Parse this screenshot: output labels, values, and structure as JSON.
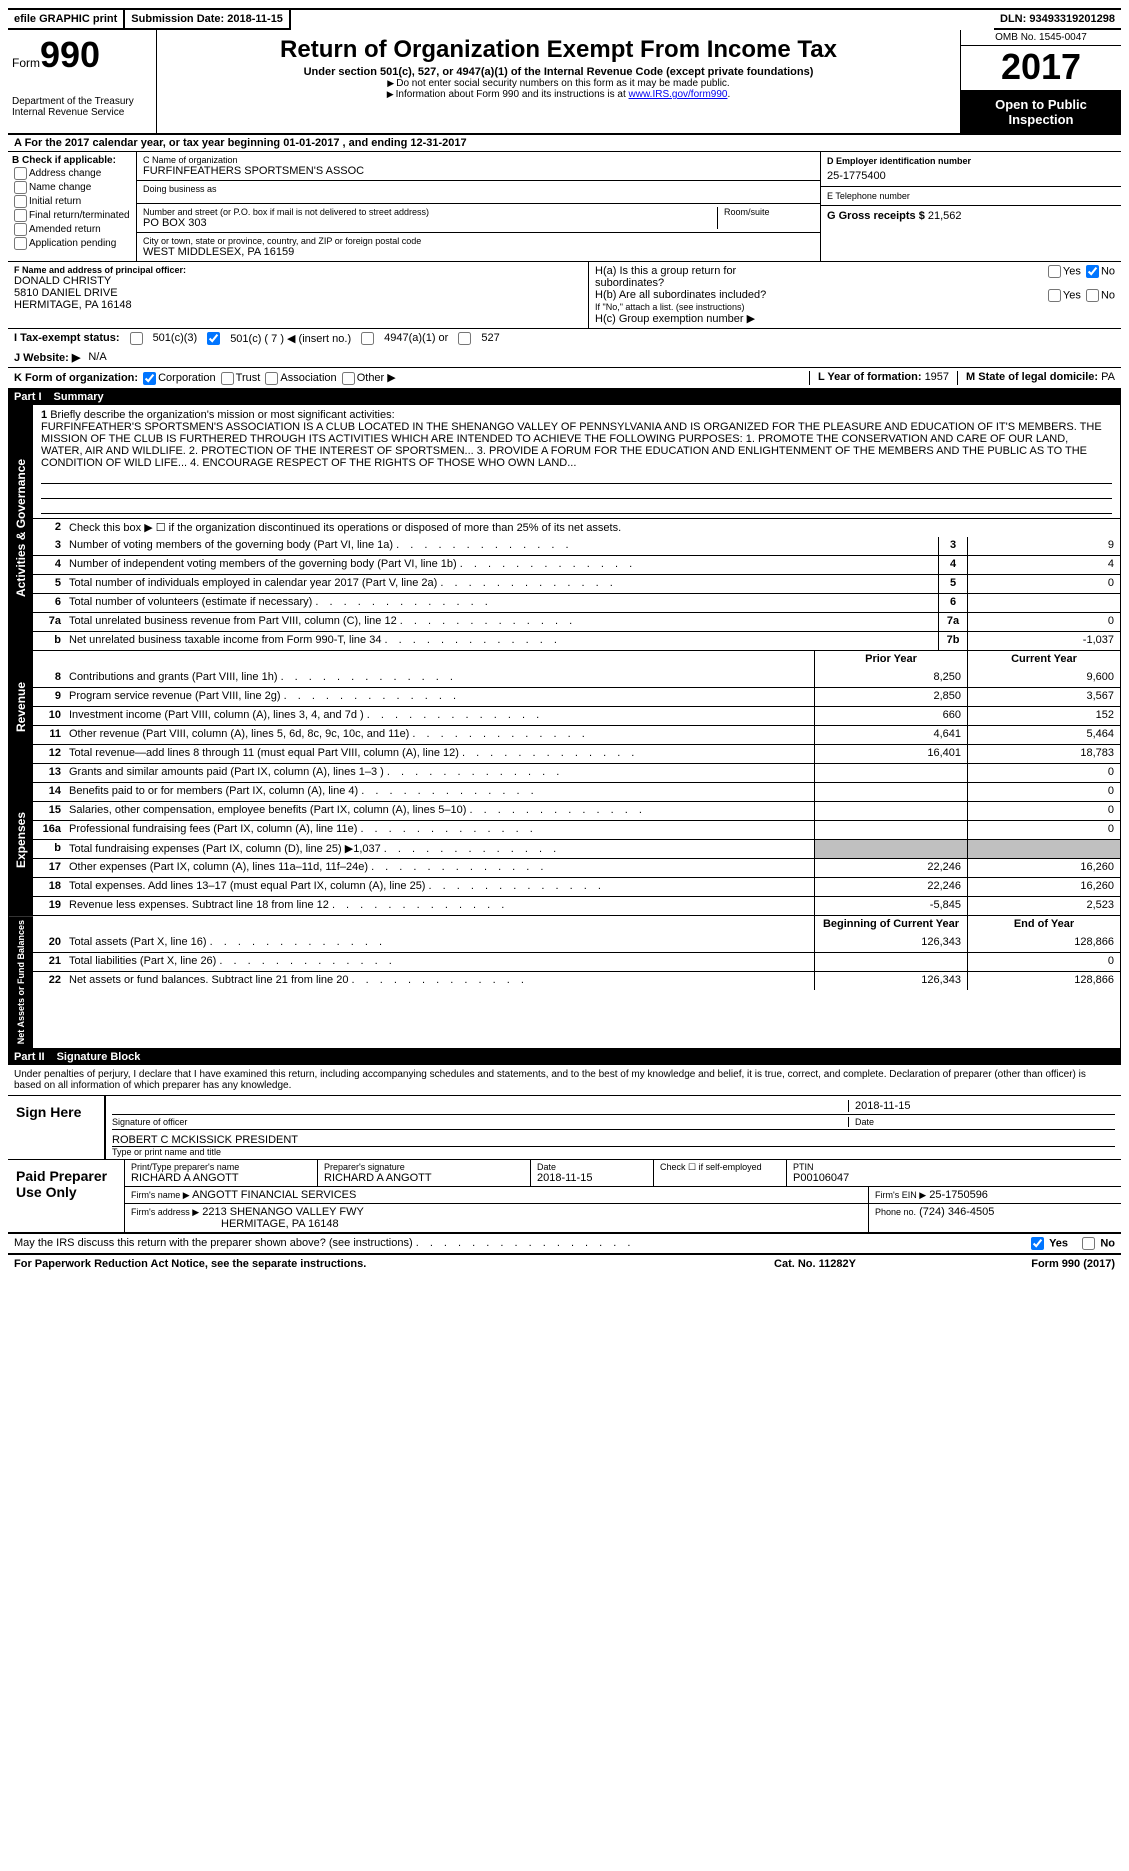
{
  "topbar": {
    "efile": "efile GRAPHIC print - DO NOT PROCESS",
    "efile_short": "efile GRAPHIC print",
    "submission_label": "Submission Date:",
    "submission_date": "2018-11-15",
    "dln_label": "DLN:",
    "dln": "93493319201298"
  },
  "header": {
    "form_word": "Form",
    "form_num": "990",
    "dept": "Department of the Treasury",
    "irs": "Internal Revenue Service",
    "title": "Return of Organization Exempt From Income Tax",
    "subtitle": "Under section 501(c), 527, or 4947(a)(1) of the Internal Revenue Code (except private foundations)",
    "note1": "Do not enter social security numbers on this form as it may be made public.",
    "note2": "Information about Form 990 and its instructions is at ",
    "link": "www.IRS.gov/form990",
    "omb": "OMB No. 1545-0047",
    "year": "2017",
    "inspect1": "Open to Public",
    "inspect2": "Inspection"
  },
  "section_a": {
    "text": "A  For the 2017 calendar year, or tax year beginning 01-01-2017   , and ending 12-31-2017"
  },
  "section_b": {
    "label": "B Check if applicable:",
    "opts": [
      "Address change",
      "Name change",
      "Initial return",
      "Final return/terminated",
      "Amended return",
      "Application pending"
    ]
  },
  "section_c": {
    "name_label": "C Name of organization",
    "name": "FURFINFEATHERS SPORTSMEN'S ASSOC",
    "dba_label": "Doing business as",
    "dba": "",
    "street_label": "Number and street (or P.O. box if mail is not delivered to street address)",
    "street": "PO BOX 303",
    "room_label": "Room/suite",
    "city_label": "City or town, state or province, country, and ZIP or foreign postal code",
    "city": "WEST MIDDLESEX, PA  16159"
  },
  "section_d": {
    "label": "D Employer identification number",
    "ein": "25-1775400"
  },
  "section_e": {
    "label": "E Telephone number",
    "val": ""
  },
  "section_g": {
    "label": "G Gross receipts $",
    "val": "21,562"
  },
  "section_f": {
    "label": "F Name and address of principal officer:",
    "name": "DONALD CHRISTY",
    "street": "5810 DANIEL DRIVE",
    "city": "HERMITAGE, PA  16148"
  },
  "section_h": {
    "a": "H(a)  Is this a group return for",
    "a2": "subordinates?",
    "b": "H(b)  Are all subordinates included?",
    "b2": "If \"No,\" attach a list. (see instructions)",
    "c": "H(c)  Group exemption number ▶",
    "yes": "Yes",
    "no": "No"
  },
  "section_i": {
    "label": "I  Tax-exempt status:",
    "o1": "501(c)(3)",
    "o2": "501(c) ( 7 ) ◀ (insert no.)",
    "o3": "4947(a)(1) or",
    "o4": "527"
  },
  "section_j": {
    "label": "J  Website: ▶",
    "val": "N/A"
  },
  "section_k": {
    "label": "K Form of organization:",
    "opts": [
      "Corporation",
      "Trust",
      "Association",
      "Other ▶"
    ]
  },
  "section_l": {
    "label": "L Year of formation:",
    "val": "1957"
  },
  "section_m": {
    "label": "M State of legal domicile:",
    "val": "PA"
  },
  "part1": {
    "label": "Part I",
    "title": "Summary"
  },
  "mission": {
    "num": "1",
    "label": "Briefly describe the organization's mission or most significant activities:",
    "text": "FURFINFEATHER'S SPORTSMEN'S ASSOCIATION IS A CLUB LOCATED IN THE SHENANGO VALLEY OF PENNSYLVANIA AND IS ORGANIZED FOR THE PLEASURE AND EDUCATION OF IT'S MEMBERS. THE MISSION OF THE CLUB IS FURTHERED THROUGH ITS ACTIVITIES WHICH ARE INTENDED TO ACHIEVE THE FOLLOWING PURPOSES: 1. PROMOTE THE CONSERVATION AND CARE OF OUR LAND, WATER, AIR AND WILDLIFE. 2. PROTECTION OF THE INTEREST OF SPORTSMEN... 3. PROVIDE A FORUM FOR THE EDUCATION AND ENLIGHTENMENT OF THE MEMBERS AND THE PUBLIC AS TO THE CONDITION OF WILD LIFE... 4. ENCOURAGE RESPECT OF THE RIGHTS OF THOSE WHO OWN LAND..."
  },
  "line2": {
    "num": "2",
    "text": "Check this box ▶ ☐ if the organization discontinued its operations or disposed of more than 25% of its net assets."
  },
  "gov_rows": [
    {
      "n": "3",
      "d": "Number of voting members of the governing body (Part VI, line 1a)",
      "b": "3",
      "v": "9"
    },
    {
      "n": "4",
      "d": "Number of independent voting members of the governing body (Part VI, line 1b)",
      "b": "4",
      "v": "4"
    },
    {
      "n": "5",
      "d": "Total number of individuals employed in calendar year 2017 (Part V, line 2a)",
      "b": "5",
      "v": "0"
    },
    {
      "n": "6",
      "d": "Total number of volunteers (estimate if necessary)",
      "b": "6",
      "v": ""
    },
    {
      "n": "7a",
      "d": "Total unrelated business revenue from Part VIII, column (C), line 12",
      "b": "7a",
      "v": "0"
    },
    {
      "n": "b",
      "d": "Net unrelated business taxable income from Form 990-T, line 34",
      "b": "7b",
      "v": "-1,037"
    }
  ],
  "year_head": {
    "prior": "Prior Year",
    "current": "Current Year"
  },
  "rev_rows": [
    {
      "n": "8",
      "d": "Contributions and grants (Part VIII, line 1h)",
      "p": "8,250",
      "c": "9,600"
    },
    {
      "n": "9",
      "d": "Program service revenue (Part VIII, line 2g)",
      "p": "2,850",
      "c": "3,567"
    },
    {
      "n": "10",
      "d": "Investment income (Part VIII, column (A), lines 3, 4, and 7d )",
      "p": "660",
      "c": "152"
    },
    {
      "n": "11",
      "d": "Other revenue (Part VIII, column (A), lines 5, 6d, 8c, 9c, 10c, and 11e)",
      "p": "4,641",
      "c": "5,464"
    },
    {
      "n": "12",
      "d": "Total revenue—add lines 8 through 11 (must equal Part VIII, column (A), line 12)",
      "p": "16,401",
      "c": "18,783"
    }
  ],
  "exp_rows": [
    {
      "n": "13",
      "d": "Grants and similar amounts paid (Part IX, column (A), lines 1–3 )",
      "p": "",
      "c": "0"
    },
    {
      "n": "14",
      "d": "Benefits paid to or for members (Part IX, column (A), line 4)",
      "p": "",
      "c": "0"
    },
    {
      "n": "15",
      "d": "Salaries, other compensation, employee benefits (Part IX, column (A), lines 5–10)",
      "p": "",
      "c": "0"
    },
    {
      "n": "16a",
      "d": "Professional fundraising fees (Part IX, column (A), line 11e)",
      "p": "",
      "c": "0"
    },
    {
      "n": "b",
      "d": "Total fundraising expenses (Part IX, column (D), line 25) ▶1,037",
      "p": "shaded",
      "c": "shaded"
    },
    {
      "n": "17",
      "d": "Other expenses (Part IX, column (A), lines 11a–11d, 11f–24e)",
      "p": "22,246",
      "c": "16,260"
    },
    {
      "n": "18",
      "d": "Total expenses. Add lines 13–17 (must equal Part IX, column (A), line 25)",
      "p": "22,246",
      "c": "16,260"
    },
    {
      "n": "19",
      "d": "Revenue less expenses. Subtract line 18 from line 12",
      "p": "-5,845",
      "c": "2,523"
    }
  ],
  "net_head": {
    "prior": "Beginning of Current Year",
    "current": "End of Year"
  },
  "net_rows": [
    {
      "n": "20",
      "d": "Total assets (Part X, line 16)",
      "p": "126,343",
      "c": "128,866"
    },
    {
      "n": "21",
      "d": "Total liabilities (Part X, line 26)",
      "p": "",
      "c": "0"
    },
    {
      "n": "22",
      "d": "Net assets or fund balances. Subtract line 21 from line 20",
      "p": "126,343",
      "c": "128,866"
    }
  ],
  "sidelabels": {
    "gov": "Activities & Governance",
    "rev": "Revenue",
    "exp": "Expenses",
    "net": "Net Assets or Fund Balances"
  },
  "part2": {
    "label": "Part II",
    "title": "Signature Block"
  },
  "sig": {
    "penalties": "Under penalties of perjury, I declare that I have examined this return, including accompanying schedules and statements, and to the best of my knowledge and belief, it is true, correct, and complete. Declaration of preparer (other than officer) is based on all information of which preparer has any knowledge.",
    "here": "Sign Here",
    "sig_label": "Signature of officer",
    "date_label": "Date",
    "date": "2018-11-15",
    "name": "ROBERT C MCKISSICK PRESIDENT",
    "type_label": "Type or print name and title"
  },
  "prep": {
    "label": "Paid Preparer Use Only",
    "name_label": "Print/Type preparer's name",
    "name": "RICHARD A ANGOTT",
    "sig_label": "Preparer's signature",
    "sig": "RICHARD A ANGOTT",
    "date_label": "Date",
    "date": "2018-11-15",
    "check_label": "Check ☐ if self-employed",
    "ptin_label": "PTIN",
    "ptin": "P00106047",
    "firm_label": "Firm's name      ▶",
    "firm": "ANGOTT FINANCIAL SERVICES",
    "ein_label": "Firm's EIN ▶",
    "ein": "25-1750596",
    "addr_label": "Firm's address ▶",
    "addr1": "2213 SHENANGO VALLEY FWY",
    "addr2": "HERMITAGE, PA  16148",
    "phone_label": "Phone no.",
    "phone": "(724) 346-4505"
  },
  "discuss": {
    "text": "May the IRS discuss this return with the preparer shown above? (see instructions)",
    "yes": "Yes",
    "no": "No"
  },
  "footer": {
    "pra": "For Paperwork Reduction Act Notice, see the separate instructions.",
    "cat": "Cat. No. 11282Y",
    "form": "Form 990 (2017)"
  }
}
